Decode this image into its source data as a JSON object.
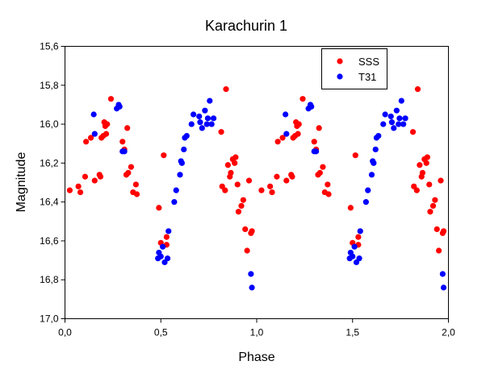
{
  "chart_data": {
    "type": "scatter",
    "title": "Karachurin 1",
    "xlabel": "Phase",
    "ylabel": "Magnitude",
    "xlim": [
      0,
      2
    ],
    "ylim": [
      15.6,
      17.0
    ],
    "y_inverted": true,
    "grid": false,
    "legend_position": "top-right",
    "x_ticks": [
      0,
      0.5,
      1,
      1.5,
      2
    ],
    "x_tick_labels": [
      "0,0",
      "0,5",
      "1,0",
      "1,5",
      "2,0"
    ],
    "y_ticks": [
      15.6,
      15.8,
      16.0,
      16.2,
      16.4,
      16.6,
      16.8,
      17.0
    ],
    "y_tick_labels": [
      "15,6",
      "15,8",
      "16,0",
      "16,2",
      "16,4",
      "16,6",
      "16,8",
      "17,0"
    ],
    "series": [
      {
        "name": "SSS",
        "color": "#ff0000",
        "points": [
          [
            0.025,
            16.34
          ],
          [
            0.07,
            16.32
          ],
          [
            0.08,
            16.35
          ],
          [
            0.105,
            16.27
          ],
          [
            0.11,
            16.09
          ],
          [
            0.135,
            16.07
          ],
          [
            0.155,
            16.29
          ],
          [
            0.18,
            16.26
          ],
          [
            0.185,
            16.27
          ],
          [
            0.19,
            16.07
          ],
          [
            0.2,
            16.06
          ],
          [
            0.205,
            15.99
          ],
          [
            0.21,
            16.01
          ],
          [
            0.22,
            16.0
          ],
          [
            0.215,
            16.05
          ],
          [
            0.24,
            15.87
          ],
          [
            0.3,
            16.09
          ],
          [
            0.31,
            16.13
          ],
          [
            0.32,
            16.26
          ],
          [
            0.325,
            16.02
          ],
          [
            0.33,
            16.25
          ],
          [
            0.345,
            16.22
          ],
          [
            0.355,
            16.35
          ],
          [
            0.37,
            16.31
          ],
          [
            0.375,
            16.36
          ],
          [
            0.49,
            16.43
          ],
          [
            0.5,
            16.61
          ],
          [
            0.515,
            16.16
          ],
          [
            0.53,
            16.58
          ],
          [
            0.53,
            16.62
          ],
          [
            0.815,
            16.04
          ],
          [
            0.82,
            16.32
          ],
          [
            0.835,
            16.34
          ],
          [
            0.84,
            15.82
          ],
          [
            0.85,
            16.21
          ],
          [
            0.86,
            16.27
          ],
          [
            0.865,
            16.25
          ],
          [
            0.875,
            16.18
          ],
          [
            0.885,
            16.2
          ],
          [
            0.89,
            16.17
          ],
          [
            0.9,
            16.31
          ],
          [
            0.905,
            16.45
          ],
          [
            0.92,
            16.42
          ],
          [
            0.93,
            16.39
          ],
          [
            0.94,
            16.54
          ],
          [
            0.95,
            16.65
          ],
          [
            0.96,
            16.29
          ],
          [
            0.97,
            16.56
          ],
          [
            0.975,
            16.55
          ]
        ]
      },
      {
        "name": "T31",
        "color": "#0000ff",
        "points": [
          [
            0.15,
            15.95
          ],
          [
            0.155,
            16.05
          ],
          [
            0.27,
            15.92
          ],
          [
            0.28,
            15.9
          ],
          [
            0.285,
            15.91
          ],
          [
            0.3,
            16.14
          ],
          [
            0.31,
            16.14
          ],
          [
            0.485,
            16.69
          ],
          [
            0.49,
            16.66
          ],
          [
            0.5,
            16.68
          ],
          [
            0.51,
            16.63
          ],
          [
            0.52,
            16.71
          ],
          [
            0.535,
            16.69
          ],
          [
            0.54,
            16.55
          ],
          [
            0.57,
            16.4
          ],
          [
            0.58,
            16.34
          ],
          [
            0.6,
            16.26
          ],
          [
            0.605,
            16.19
          ],
          [
            0.61,
            16.2
          ],
          [
            0.62,
            16.13
          ],
          [
            0.625,
            16.07
          ],
          [
            0.635,
            16.06
          ],
          [
            0.66,
            16.0
          ],
          [
            0.67,
            15.95
          ],
          [
            0.7,
            15.96
          ],
          [
            0.705,
            15.99
          ],
          [
            0.715,
            16.02
          ],
          [
            0.73,
            15.93
          ],
          [
            0.74,
            16.0
          ],
          [
            0.745,
            15.97
          ],
          [
            0.755,
            15.88
          ],
          [
            0.765,
            16.0
          ],
          [
            0.775,
            15.97
          ],
          [
            0.97,
            16.77
          ],
          [
            0.975,
            16.84
          ]
        ]
      }
    ],
    "mirror_period": 1
  }
}
